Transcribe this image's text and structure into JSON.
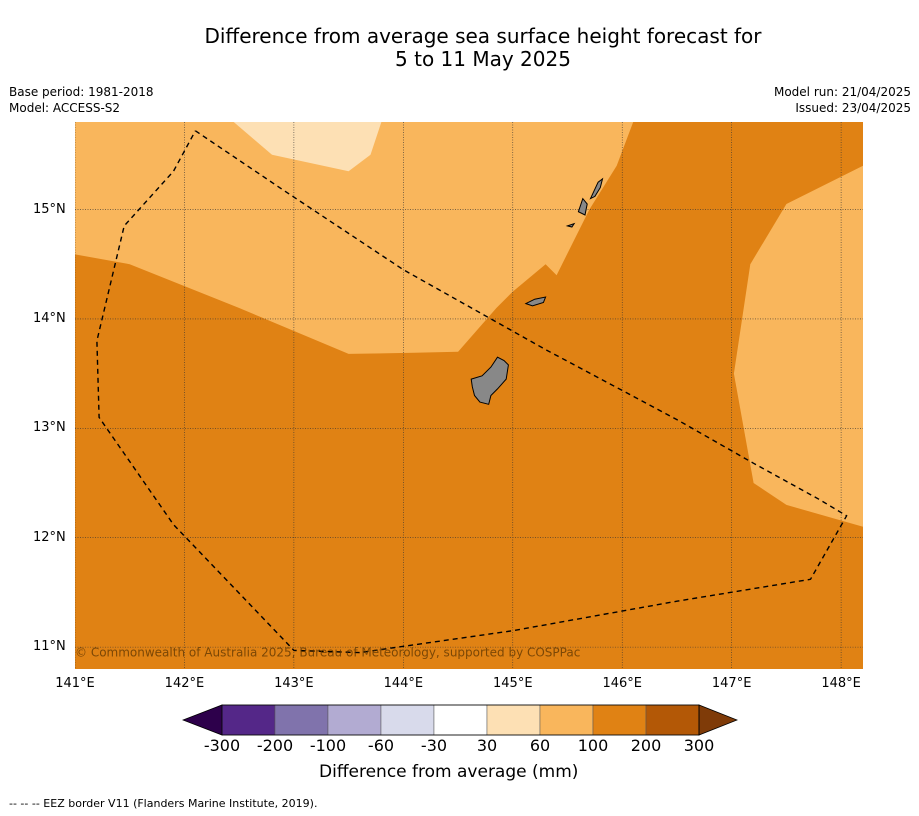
{
  "title": {
    "line1": "Difference from average sea surface height forecast for",
    "line2": "5 to 11 May 2025"
  },
  "meta": {
    "base_period": "Base period: 1981-2018",
    "model": "Model: ACCESS-S2",
    "model_run": "Model run: 21/04/2025",
    "issued": "Issued: 23/04/2025"
  },
  "map": {
    "lon_range": [
      141,
      148.2
    ],
    "lat_range": [
      10.8,
      15.8
    ],
    "lon_ticks": [
      141,
      142,
      143,
      144,
      145,
      146,
      147,
      148
    ],
    "lon_labels": [
      "141°E",
      "142°E",
      "143°E",
      "144°E",
      "145°E",
      "146°E",
      "147°E",
      "148°E"
    ],
    "lat_ticks": [
      15,
      14,
      13,
      12,
      11
    ],
    "lat_labels": [
      "15°N",
      "14°N",
      "13°N",
      "12°N",
      "11°N"
    ],
    "gridlines": true,
    "copyright": "© Commonwealth of Australia 2025, Bureau of Meteorology, supported by COSPPac",
    "colors": {
      "band_30_60": "#fde0b4",
      "band_60_100": "#f9b65c",
      "band_100_200": "#e08214",
      "land": "#888888",
      "eez": "#000000"
    },
    "regions": [
      {
        "band": "100-200",
        "polygon": [
          [
            141,
            15.8
          ],
          [
            148.2,
            15.8
          ],
          [
            148.2,
            10.8
          ],
          [
            141,
            10.8
          ]
        ]
      },
      {
        "band": "60-100",
        "polygon": [
          [
            141,
            15.8
          ],
          [
            146.1,
            15.8
          ],
          [
            145.95,
            15.4
          ],
          [
            145.7,
            15.0
          ],
          [
            145.4,
            14.4
          ],
          [
            145.3,
            14.5
          ],
          [
            145.0,
            14.25
          ],
          [
            144.85,
            14.1
          ],
          [
            144.5,
            13.7
          ],
          [
            144.1,
            13.69
          ],
          [
            143.5,
            13.68
          ],
          [
            142.5,
            14.1
          ],
          [
            141.5,
            14.5
          ],
          [
            141,
            14.59
          ]
        ]
      },
      {
        "band": "30-60",
        "polygon": [
          [
            142.45,
            15.8
          ],
          [
            143.8,
            15.8
          ],
          [
            143.7,
            15.5
          ],
          [
            143.5,
            15.35
          ],
          [
            142.8,
            15.5
          ],
          [
            142.45,
            15.8
          ]
        ]
      },
      {
        "band": "60-100",
        "polygon": [
          [
            148.2,
            15.4
          ],
          [
            147.5,
            15.05
          ],
          [
            147.17,
            14.5
          ],
          [
            147.02,
            13.5
          ],
          [
            147.2,
            12.5
          ],
          [
            147.5,
            12.3
          ],
          [
            148.2,
            12.1
          ]
        ]
      }
    ],
    "islands": [
      [
        [
          144.62,
          13.45
        ],
        [
          144.72,
          13.48
        ],
        [
          144.8,
          13.56
        ],
        [
          144.86,
          13.65
        ],
        [
          144.92,
          13.62
        ],
        [
          144.96,
          13.58
        ],
        [
          144.94,
          13.45
        ],
        [
          144.86,
          13.36
        ],
        [
          144.8,
          13.3
        ],
        [
          144.78,
          13.22
        ],
        [
          144.7,
          13.24
        ],
        [
          144.65,
          13.3
        ],
        [
          144.63,
          13.38
        ]
      ],
      [
        [
          145.12,
          14.14
        ],
        [
          145.2,
          14.18
        ],
        [
          145.3,
          14.2
        ],
        [
          145.28,
          14.15
        ],
        [
          145.18,
          14.12
        ]
      ],
      [
        [
          145.6,
          14.98
        ],
        [
          145.64,
          15.1
        ],
        [
          145.68,
          15.05
        ],
        [
          145.66,
          14.95
        ]
      ],
      [
        [
          145.71,
          15.1
        ],
        [
          145.78,
          15.25
        ],
        [
          145.82,
          15.28
        ],
        [
          145.8,
          15.2
        ],
        [
          145.75,
          15.12
        ]
      ],
      [
        [
          145.5,
          14.85
        ],
        [
          145.56,
          14.87
        ],
        [
          145.54,
          14.84
        ]
      ]
    ],
    "eez_border": [
      [
        142.1,
        15.72
      ],
      [
        142.9,
        15.18
      ],
      [
        144.0,
        14.45
      ],
      [
        145.3,
        13.72
      ],
      [
        146.5,
        13.08
      ],
      [
        147.2,
        12.68
      ],
      [
        147.8,
        12.35
      ],
      [
        148.05,
        12.2
      ],
      [
        147.72,
        11.62
      ],
      [
        146.5,
        11.42
      ],
      [
        145.0,
        11.15
      ],
      [
        143.6,
        10.95
      ],
      [
        143.0,
        10.97
      ],
      [
        141.9,
        12.12
      ],
      [
        141.22,
        13.1
      ],
      [
        141.2,
        13.8
      ],
      [
        141.45,
        14.85
      ],
      [
        141.9,
        15.35
      ],
      [
        142.1,
        15.72
      ]
    ]
  },
  "colorbar": {
    "label": "Difference from average (mm)",
    "tick_labels": [
      "-300",
      "-200",
      "-100",
      "-60",
      "-30",
      "30",
      "60",
      "100",
      "200",
      "300"
    ],
    "colors": [
      "#542788",
      "#8073ac",
      "#b2abd2",
      "#d8daeb",
      "#ffffff",
      "#fde0b4",
      "#f9b65c",
      "#e08214",
      "#b35806"
    ],
    "extend_low": "#2d004b",
    "extend_high": "#7f3b08"
  },
  "footnote": "--  --  -- EEZ border V11 (Flanders Marine Institute, 2019)."
}
